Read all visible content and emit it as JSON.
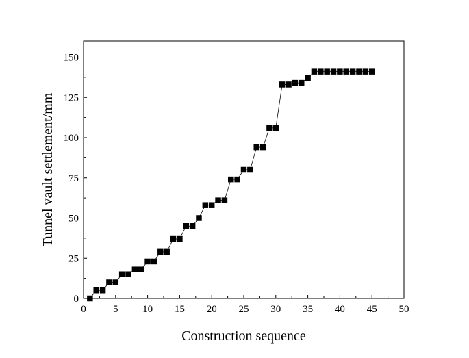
{
  "chart_data": {
    "type": "line",
    "title": "",
    "xlabel": "Construction sequence",
    "ylabel": "Tunnel vault settlement/mm",
    "xlim": [
      0,
      50
    ],
    "ylim": [
      0,
      160
    ],
    "xticks": [
      0,
      5,
      10,
      15,
      20,
      25,
      30,
      35,
      40,
      45,
      50
    ],
    "yticks": [
      0,
      25,
      50,
      75,
      100,
      125,
      150
    ],
    "grid": false,
    "legend": "none",
    "marker": "square",
    "color": "#000000",
    "x": [
      1,
      2,
      3,
      4,
      5,
      6,
      7,
      8,
      9,
      10,
      11,
      12,
      13,
      14,
      15,
      16,
      17,
      18,
      19,
      20,
      21,
      22,
      23,
      24,
      25,
      26,
      27,
      28,
      29,
      30,
      31,
      32,
      33,
      34,
      35,
      36,
      37,
      38,
      39,
      40,
      41,
      42,
      43,
      44,
      45
    ],
    "y": [
      0,
      5,
      5,
      10,
      10,
      15,
      15,
      18,
      18,
      23,
      23,
      29,
      29,
      37,
      37,
      45,
      45,
      50,
      58,
      58,
      61,
      61,
      74,
      74,
      80,
      80,
      94,
      94,
      106,
      106,
      133,
      133,
      134,
      134,
      137,
      141,
      141,
      141,
      141,
      141,
      141,
      141,
      141,
      141,
      141
    ]
  }
}
